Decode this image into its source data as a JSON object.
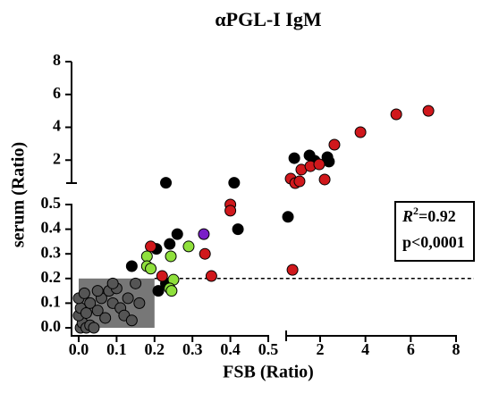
{
  "chart_data": {
    "type": "scatter",
    "title": "αPGL-I IgM",
    "x_label": "FSB (Ratio)",
    "y_label": "serum (Ratio)",
    "x_segments": [
      {
        "xlim": [
          0,
          0.5
        ],
        "xticks": [
          {
            "value": 0,
            "label": "0.0"
          },
          0.1,
          0.2,
          0.3,
          0.4,
          0.5
        ]
      },
      {
        "xlim": [
          0.5,
          8
        ],
        "xticks": [
          2,
          4,
          6,
          8
        ]
      }
    ],
    "y_segments": [
      {
        "ylim": [
          0,
          0.5
        ],
        "yticks": [
          {
            "value": 0,
            "label": "0.0"
          },
          0.1,
          0.2,
          0.3,
          0.4,
          0.5
        ]
      },
      {
        "ylim": [
          0.6,
          8
        ],
        "yticks": [
          2,
          4,
          6,
          8
        ]
      }
    ],
    "shaded_region": {
      "xlim": [
        0,
        0.2
      ],
      "ylim": [
        0,
        0.2
      ],
      "color": "#777777"
    },
    "threshold_y": 0.2,
    "annotation": {
      "r_symbol": "R",
      "r_exponent": "2",
      "r_value": "=0.92",
      "p": "p<0,0001"
    },
    "series": [
      {
        "color": "#555555",
        "x": [
          0.005,
          0.01,
          0.02,
          0.03,
          0.04,
          0.0,
          0.005,
          0.02,
          0.03,
          0.05,
          0.06,
          0.08,
          0.09,
          0.1,
          0.11,
          0.12,
          0.13,
          0.14,
          0.15,
          0.16,
          0.05,
          0.07,
          0.0,
          0.015,
          0.09
        ],
        "y": [
          0.0,
          0.02,
          0.0,
          0.01,
          0.0,
          0.05,
          0.08,
          0.06,
          0.1,
          0.07,
          0.12,
          0.15,
          0.1,
          0.16,
          0.08,
          0.05,
          0.12,
          0.03,
          0.18,
          0.1,
          0.15,
          0.04,
          0.12,
          0.14,
          0.18
        ]
      },
      {
        "color": "#000000",
        "x": [
          0.23,
          0.41,
          0.58,
          0.42,
          0.26,
          0.24,
          0.205,
          0.14,
          0.23,
          0.21,
          0.86,
          1.53,
          1.76,
          2.32,
          2.39
        ],
        "y": [
          0.62,
          0.62,
          0.45,
          0.4,
          0.38,
          0.34,
          0.32,
          0.25,
          0.18,
          0.15,
          2.12,
          2.29,
          1.96,
          2.18,
          1.91
        ]
      },
      {
        "color": "#d0181c",
        "x": [
          5.36,
          6.78,
          3.78,
          2.63,
          1.17,
          1.57,
          1.96,
          0.7,
          0.9,
          1.09,
          2.2,
          0.78,
          0.4,
          0.4,
          0.333,
          0.35,
          0.19,
          0.22
        ],
        "y": [
          4.79,
          5.0,
          3.7,
          2.94,
          1.42,
          1.63,
          1.74,
          0.87,
          0.6,
          0.71,
          0.82,
          0.235,
          0.5,
          0.475,
          0.3,
          0.21,
          0.33,
          0.21
        ]
      },
      {
        "color": "#8fe03c",
        "x": [
          0.243,
          0.29,
          0.18,
          0.18,
          0.19,
          0.25,
          0.24,
          0.245
        ],
        "y": [
          0.29,
          0.33,
          0.29,
          0.25,
          0.24,
          0.195,
          0.16,
          0.15
        ]
      },
      {
        "color": "#7a1fc8",
        "x": [
          0.33
        ],
        "y": [
          0.38
        ]
      }
    ]
  }
}
